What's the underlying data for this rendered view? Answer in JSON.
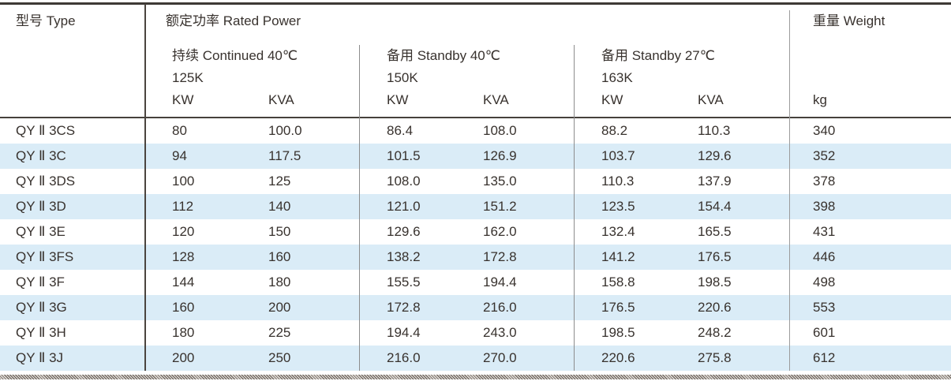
{
  "table": {
    "header": {
      "type_label": "型号 Type",
      "rated_power_label": "额定功率 Rated Power",
      "weight_label": "重量 Weight",
      "weight_unit": "kg",
      "groups": [
        {
          "title": "持续 Continued 40℃",
          "k": "125K",
          "kw": "KW",
          "kva": "KVA"
        },
        {
          "title": "备用 Standby 40℃",
          "k": "150K",
          "kw": "KW",
          "kva": "KVA"
        },
        {
          "title": "备用 Standby 27℃",
          "k": "163K",
          "kw": "KW",
          "kva": "KVA"
        }
      ]
    },
    "rows": [
      {
        "type": "QY Ⅱ 3CS",
        "values": [
          "80",
          "100.0",
          "86.4",
          "108.0",
          "88.2",
          "110.3",
          "340"
        ]
      },
      {
        "type": "QY Ⅱ 3C",
        "values": [
          "94",
          "117.5",
          "101.5",
          "126.9",
          "103.7",
          "129.6",
          "352"
        ]
      },
      {
        "type": "QY Ⅱ 3DS",
        "values": [
          "100",
          "125",
          "108.0",
          "135.0",
          "110.3",
          "137.9",
          "378"
        ]
      },
      {
        "type": "QY Ⅱ 3D",
        "values": [
          "112",
          "140",
          "121.0",
          "151.2",
          "123.5",
          "154.4",
          "398"
        ]
      },
      {
        "type": "QY Ⅱ 3E",
        "values": [
          "120",
          "150",
          "129.6",
          "162.0",
          "132.4",
          "165.5",
          "431"
        ]
      },
      {
        "type": "QY Ⅱ 3FS",
        "values": [
          "128",
          "160",
          "138.2",
          "172.8",
          "141.2",
          "176.5",
          "446"
        ]
      },
      {
        "type": "QY Ⅱ 3F",
        "values": [
          "144",
          "180",
          "155.5",
          "194.4",
          "158.8",
          "198.5",
          "498"
        ]
      },
      {
        "type": "QY Ⅱ 3G",
        "values": [
          "160",
          "200",
          "172.8",
          "216.0",
          "176.5",
          "220.6",
          "553"
        ]
      },
      {
        "type": "QY Ⅱ 3H",
        "values": [
          "180",
          "225",
          "194.4",
          "243.0",
          "198.5",
          "248.2",
          "601"
        ]
      },
      {
        "type": "QY Ⅱ 3J",
        "values": [
          "200",
          "250",
          "216.0",
          "270.0",
          "220.6",
          "275.8",
          "612"
        ]
      }
    ],
    "colors": {
      "stripe": "#daecf7",
      "text": "#38322e",
      "rule_dark": "#3e3935",
      "rule_gray": "#8c8c8c"
    }
  }
}
